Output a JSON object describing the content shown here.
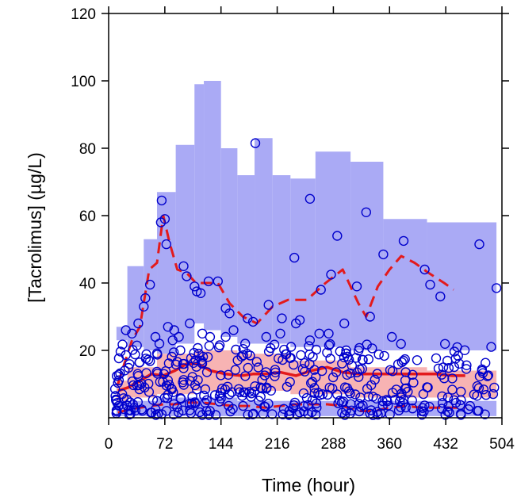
{
  "chart_data": {
    "type": "scatter",
    "title": "",
    "xlabel": "Time (hour)",
    "ylabel": "[Tacrolimus] (µg/L)",
    "xlim": [
      0,
      504
    ],
    "ylim": [
      0,
      120
    ],
    "xticks": [
      "0",
      "72",
      "144",
      "216",
      "288",
      "360",
      "432",
      "504"
    ],
    "yticks": [
      "20",
      "40",
      "60",
      "80",
      "100",
      "120"
    ],
    "grid": false,
    "legend": "none",
    "colors": {
      "observed": "#0000cc",
      "upper_pi_band": "#aaaaf5",
      "median_band": "#f7b3b3",
      "lower_pi_band": "#aaaaf5",
      "percentile_lines": "#e31a1c"
    },
    "bands": [
      {
        "name": "",
        "role": "upper-percentile prediction interval",
        "steps": [
          {
            "x0": 10,
            "x1": 24,
            "lo": 23,
            "hi": 27
          },
          {
            "x0": 24,
            "x1": 45,
            "lo": 21,
            "hi": 45
          },
          {
            "x0": 45,
            "x1": 62,
            "lo": 20,
            "hi": 53
          },
          {
            "x0": 62,
            "x1": 86,
            "lo": 19,
            "hi": 67
          },
          {
            "x0": 86,
            "x1": 110,
            "lo": 22,
            "hi": 81
          },
          {
            "x0": 110,
            "x1": 122,
            "lo": 28,
            "hi": 99
          },
          {
            "x0": 122,
            "x1": 144,
            "lo": 26,
            "hi": 100
          },
          {
            "x0": 144,
            "x1": 165,
            "lo": 24,
            "hi": 80
          },
          {
            "x0": 165,
            "x1": 187,
            "lo": 22,
            "hi": 72
          },
          {
            "x0": 187,
            "x1": 210,
            "lo": 22,
            "hi": 83
          },
          {
            "x0": 210,
            "x1": 233,
            "lo": 22,
            "hi": 72
          },
          {
            "x0": 233,
            "x1": 265,
            "lo": 21,
            "hi": 71
          },
          {
            "x0": 265,
            "x1": 310,
            "lo": 21,
            "hi": 79
          },
          {
            "x0": 310,
            "x1": 352,
            "lo": 20,
            "hi": 76
          },
          {
            "x0": 352,
            "x1": 408,
            "lo": 20,
            "hi": 59
          },
          {
            "x0": 408,
            "x1": 497,
            "lo": 20,
            "hi": 58
          }
        ]
      },
      {
        "name": "",
        "role": "median prediction interval",
        "steps": [
          {
            "x0": 10,
            "x1": 24,
            "lo": 5,
            "hi": 11
          },
          {
            "x0": 24,
            "x1": 62,
            "lo": 6,
            "hi": 15
          },
          {
            "x0": 62,
            "x1": 110,
            "lo": 7,
            "hi": 19
          },
          {
            "x0": 110,
            "x1": 165,
            "lo": 8,
            "hi": 20
          },
          {
            "x0": 165,
            "x1": 233,
            "lo": 8,
            "hi": 19
          },
          {
            "x0": 233,
            "x1": 310,
            "lo": 7,
            "hi": 17
          },
          {
            "x0": 310,
            "x1": 408,
            "lo": 6,
            "hi": 15
          },
          {
            "x0": 408,
            "x1": 497,
            "lo": 6,
            "hi": 14
          }
        ]
      },
      {
        "name": "",
        "role": "lower-percentile prediction interval",
        "steps": [
          {
            "x0": 10,
            "x1": 62,
            "lo": 0.5,
            "hi": 5
          },
          {
            "x0": 62,
            "x1": 165,
            "lo": 0.5,
            "hi": 6
          },
          {
            "x0": 165,
            "x1": 310,
            "lo": 0.5,
            "hi": 5
          },
          {
            "x0": 310,
            "x1": 497,
            "lo": 0.5,
            "hi": 5
          }
        ]
      }
    ],
    "lines": [
      {
        "name": "",
        "role": "observed 95th percentile",
        "style": "dashed",
        "x": [
          12,
          20,
          30,
          40,
          52,
          62,
          70,
          78,
          88,
          100,
          112,
          126,
          140,
          155,
          172,
          190,
          210,
          230,
          254,
          278,
          300,
          320,
          330,
          345,
          360,
          375,
          392,
          410,
          430,
          442
        ],
        "y": [
          10,
          16,
          23,
          27,
          44,
          46,
          60,
          52,
          44,
          43,
          40,
          40,
          40,
          34,
          30,
          28,
          33,
          35,
          35,
          40,
          44,
          34,
          30,
          39,
          44,
          48,
          46,
          43,
          40,
          38
        ]
      },
      {
        "name": "",
        "role": "observed median",
        "style": "solid",
        "x": [
          12,
          25,
          40,
          55,
          70,
          85,
          100,
          115,
          130,
          150,
          170,
          185,
          200,
          220,
          240,
          260,
          280,
          300,
          320,
          340,
          360,
          380,
          400,
          420,
          440,
          457
        ],
        "y": [
          8,
          9,
          11,
          13,
          12.5,
          14,
          16,
          16,
          14,
          13,
          12.5,
          13,
          13,
          13.5,
          12.5,
          14,
          15,
          13.5,
          13,
          13,
          13,
          13,
          13,
          13,
          12.5,
          12.5
        ]
      },
      {
        "name": "",
        "role": "observed 5th percentile",
        "style": "dashed",
        "x": [
          12,
          25,
          40,
          55,
          70,
          85,
          100,
          120,
          140,
          160,
          180,
          200,
          220,
          240,
          260,
          280,
          300,
          320,
          340,
          360,
          380,
          400,
          420,
          440,
          457
        ],
        "y": [
          1.5,
          2.5,
          3,
          3.5,
          4,
          4,
          4.5,
          4.5,
          4,
          3.5,
          3.5,
          3,
          3.5,
          4,
          4,
          4,
          3.5,
          2,
          2,
          3,
          3.5,
          3,
          3,
          3,
          3
        ]
      }
    ],
    "outlier_points": [
      [
        68,
        64.5
      ],
      [
        72,
        59
      ],
      [
        74,
        51.5
      ],
      [
        67,
        58
      ],
      [
        53,
        39.5
      ],
      [
        47,
        35.5
      ],
      [
        45,
        33
      ],
      [
        96,
        45
      ],
      [
        100,
        42
      ],
      [
        110,
        39
      ],
      [
        113,
        37.5
      ],
      [
        118,
        37
      ],
      [
        128,
        40.5
      ],
      [
        140,
        40.5
      ],
      [
        150,
        32.5
      ],
      [
        155,
        31
      ],
      [
        178,
        29.5
      ],
      [
        185,
        28.5
      ],
      [
        188,
        81.5
      ],
      [
        205,
        33.5
      ],
      [
        222,
        29.5
      ],
      [
        238,
        47.5
      ],
      [
        258,
        65
      ],
      [
        272,
        38
      ],
      [
        293,
        54
      ],
      [
        285,
        42.5
      ],
      [
        318,
        39
      ],
      [
        330,
        61
      ],
      [
        352,
        48.5
      ],
      [
        363,
        24
      ],
      [
        378,
        52.5
      ],
      [
        405,
        44
      ],
      [
        412,
        39.5
      ],
      [
        425,
        36
      ],
      [
        475,
        51.5
      ],
      [
        497,
        38.5
      ],
      [
        335,
        30
      ],
      [
        120,
        25
      ],
      [
        130,
        24
      ],
      [
        150,
        24
      ],
      [
        160,
        26
      ],
      [
        175,
        22
      ],
      [
        202,
        24
      ],
      [
        220,
        25
      ],
      [
        240,
        28
      ],
      [
        258,
        23
      ],
      [
        270,
        25
      ],
      [
        282,
        25
      ],
      [
        84,
        26
      ],
      [
        90,
        24
      ],
      [
        76,
        27
      ],
      [
        82,
        23
      ],
      [
        104,
        28
      ],
      [
        30,
        25
      ],
      [
        22,
        26
      ],
      [
        38,
        28
      ],
      [
        92,
        20
      ],
      [
        60,
        24
      ],
      [
        65,
        22
      ],
      [
        245,
        29
      ],
      [
        302,
        28
      ]
    ],
    "dense_cloud": {
      "x_range": [
        8,
        497
      ],
      "y_range": [
        0.8,
        22
      ],
      "point_count": 420
    }
  }
}
